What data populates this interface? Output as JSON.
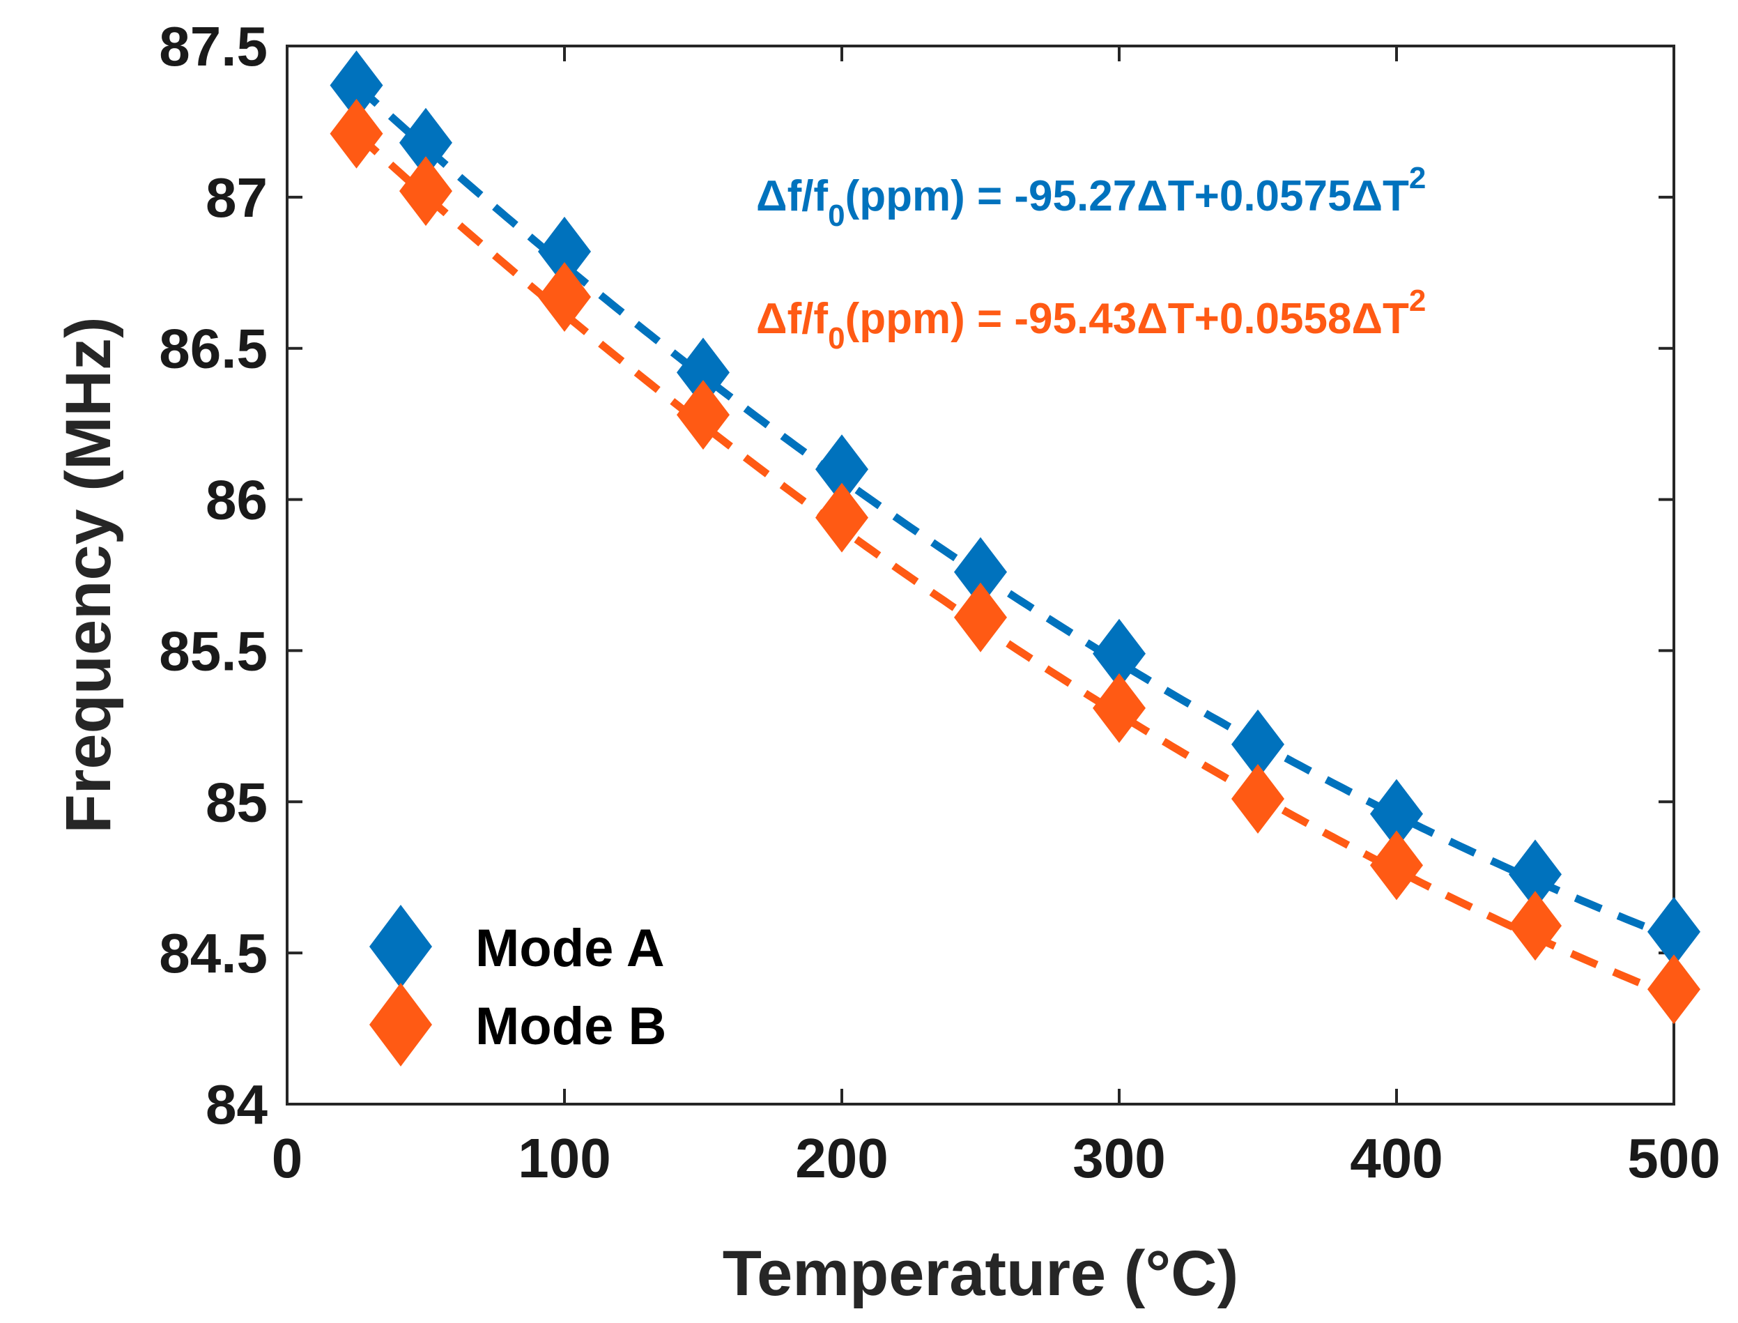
{
  "chart_data": {
    "type": "scatter",
    "xlabel": "Temperature (°C)",
    "ylabel": "Frequency (MHz)",
    "xlim": [
      0,
      500
    ],
    "ylim": [
      84,
      87.5
    ],
    "xticks": [
      "0",
      "100",
      "200",
      "300",
      "400",
      "500"
    ],
    "yticks": [
      "84",
      "84.5",
      "85",
      "85.5",
      "86",
      "86.5",
      "87",
      "87.5"
    ],
    "x": [
      25,
      50,
      100,
      150,
      200,
      250,
      300,
      350,
      400,
      450,
      500
    ],
    "series": [
      {
        "name": "Mode A",
        "color": "#0072BD",
        "marker": "diamond",
        "values": [
          87.37,
          87.18,
          86.82,
          86.42,
          86.1,
          85.76,
          85.49,
          85.19,
          84.96,
          84.76,
          84.57
        ],
        "fit": {
          "type": "quadratic",
          "f0": 87.37,
          "T0": 25,
          "a_ppm": -95.27,
          "b_ppm": 0.0575
        },
        "equation": {
          "lhs_a": "Δf/f",
          "lhs_sub": "0",
          "lhs_b": "(ppm) = -95.27ΔT+0.0575ΔT",
          "sup": "2"
        }
      },
      {
        "name": "Mode B",
        "color": "#FF5A14",
        "marker": "diamond",
        "values": [
          87.21,
          87.02,
          86.67,
          86.28,
          85.94,
          85.61,
          85.31,
          85.01,
          84.79,
          84.59,
          84.38
        ],
        "fit": {
          "type": "quadratic",
          "f0": 87.21,
          "T0": 25,
          "a_ppm": -95.43,
          "b_ppm": 0.0558
        },
        "equation": {
          "lhs_a": "Δf/f",
          "lhs_sub": "0",
          "lhs_b": "(ppm) = -95.43ΔT+0.0558ΔT",
          "sup": "2"
        }
      }
    ],
    "legend": {
      "position": "bottom-left",
      "entries": [
        "Mode A",
        "Mode B"
      ]
    },
    "grid": false
  }
}
